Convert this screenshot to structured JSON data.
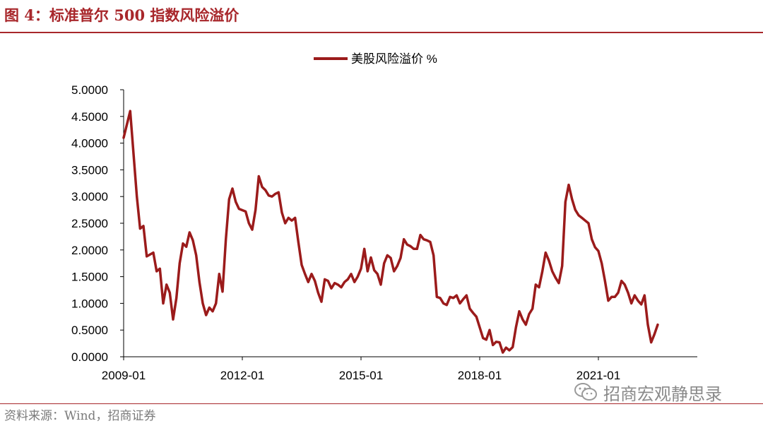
{
  "figure": {
    "title": "图 4：标准普尔 500 指数风险溢价",
    "source": "资料来源：Wind，招商证券",
    "watermark": "招商宏观静思录",
    "watermark_icon": "wechat-icon"
  },
  "colors": {
    "accent": "#a8272b",
    "series": "#9b1b1b",
    "axis": "#000000",
    "source_text": "#7a7a7a"
  },
  "chart_data": {
    "type": "line",
    "title": "",
    "xlabel": "",
    "ylabel": "",
    "xlim": [
      "2009-01",
      "2023-07"
    ],
    "ylim": [
      0,
      5
    ],
    "grid": false,
    "legend_position": "top-center",
    "x_ticks": [
      "2009-01",
      "2012-01",
      "2015-01",
      "2018-01",
      "2021-01"
    ],
    "y_ticks": [
      "0.0000",
      "0.5000",
      "1.0000",
      "1.5000",
      "2.0000",
      "2.5000",
      "3.0000",
      "3.5000",
      "4.0000",
      "4.5000",
      "5.0000"
    ],
    "series": [
      {
        "name": "美股风险溢价 %",
        "color": "#9b1b1b",
        "points": [
          [
            "2009-01",
            4.1
          ],
          [
            "2009-03",
            4.6
          ],
          [
            "2009-05",
            3.0
          ],
          [
            "2009-06",
            2.4
          ],
          [
            "2009-07",
            2.45
          ],
          [
            "2009-08",
            1.88
          ],
          [
            "2009-10",
            1.95
          ],
          [
            "2009-11",
            1.6
          ],
          [
            "2009-12",
            1.65
          ],
          [
            "2010-01",
            1.0
          ],
          [
            "2010-02",
            1.35
          ],
          [
            "2010-03",
            1.2
          ],
          [
            "2010-04",
            0.7
          ],
          [
            "2010-05",
            1.1
          ],
          [
            "2010-06",
            1.75
          ],
          [
            "2010-07",
            2.12
          ],
          [
            "2010-08",
            2.06
          ],
          [
            "2010-09",
            2.33
          ],
          [
            "2010-10",
            2.18
          ],
          [
            "2010-11",
            1.9
          ],
          [
            "2010-12",
            1.4
          ],
          [
            "2011-01",
            1.0
          ],
          [
            "2011-02",
            0.78
          ],
          [
            "2011-03",
            0.92
          ],
          [
            "2011-04",
            0.85
          ],
          [
            "2011-05",
            1.0
          ],
          [
            "2011-06",
            1.55
          ],
          [
            "2011-07",
            1.22
          ],
          [
            "2011-08",
            2.2
          ],
          [
            "2011-09",
            2.95
          ],
          [
            "2011-10",
            3.15
          ],
          [
            "2011-11",
            2.9
          ],
          [
            "2011-12",
            2.77
          ],
          [
            "2012-02",
            2.72
          ],
          [
            "2012-03",
            2.5
          ],
          [
            "2012-04",
            2.38
          ],
          [
            "2012-05",
            2.75
          ],
          [
            "2012-06",
            3.38
          ],
          [
            "2012-07",
            3.18
          ],
          [
            "2012-08",
            3.12
          ],
          [
            "2012-09",
            3.02
          ],
          [
            "2012-10",
            3.0
          ],
          [
            "2012-11",
            3.05
          ],
          [
            "2012-12",
            3.08
          ],
          [
            "2013-01",
            2.7
          ],
          [
            "2013-02",
            2.5
          ],
          [
            "2013-03",
            2.6
          ],
          [
            "2013-04",
            2.55
          ],
          [
            "2013-05",
            2.6
          ],
          [
            "2013-06",
            2.15
          ],
          [
            "2013-07",
            1.72
          ],
          [
            "2013-08",
            1.55
          ],
          [
            "2013-09",
            1.4
          ],
          [
            "2013-10",
            1.55
          ],
          [
            "2013-11",
            1.42
          ],
          [
            "2013-12",
            1.2
          ],
          [
            "2014-01",
            1.03
          ],
          [
            "2014-02",
            1.45
          ],
          [
            "2014-03",
            1.42
          ],
          [
            "2014-04",
            1.28
          ],
          [
            "2014-05",
            1.38
          ],
          [
            "2014-06",
            1.35
          ],
          [
            "2014-07",
            1.3
          ],
          [
            "2014-08",
            1.4
          ],
          [
            "2014-09",
            1.45
          ],
          [
            "2014-10",
            1.55
          ],
          [
            "2014-11",
            1.4
          ],
          [
            "2014-12",
            1.5
          ],
          [
            "2015-01",
            1.65
          ],
          [
            "2015-02",
            2.02
          ],
          [
            "2015-03",
            1.6
          ],
          [
            "2015-04",
            1.86
          ],
          [
            "2015-05",
            1.62
          ],
          [
            "2015-06",
            1.55
          ],
          [
            "2015-07",
            1.35
          ],
          [
            "2015-08",
            1.75
          ],
          [
            "2015-09",
            1.9
          ],
          [
            "2015-10",
            1.85
          ],
          [
            "2015-11",
            1.6
          ],
          [
            "2015-12",
            1.7
          ],
          [
            "2016-01",
            1.85
          ],
          [
            "2016-02",
            2.2
          ],
          [
            "2016-03",
            2.1
          ],
          [
            "2016-04",
            2.07
          ],
          [
            "2016-05",
            2.02
          ],
          [
            "2016-06",
            2.02
          ],
          [
            "2016-07",
            2.28
          ],
          [
            "2016-08",
            2.2
          ],
          [
            "2016-09",
            2.18
          ],
          [
            "2016-10",
            2.15
          ],
          [
            "2016-11",
            1.9
          ],
          [
            "2016-12",
            1.12
          ],
          [
            "2017-01",
            1.1
          ],
          [
            "2017-02",
            1.0
          ],
          [
            "2017-03",
            0.97
          ],
          [
            "2017-04",
            1.12
          ],
          [
            "2017-05",
            1.1
          ],
          [
            "2017-06",
            1.15
          ],
          [
            "2017-07",
            1.0
          ],
          [
            "2017-08",
            1.08
          ],
          [
            "2017-09",
            1.15
          ],
          [
            "2017-10",
            0.9
          ],
          [
            "2017-11",
            0.82
          ],
          [
            "2017-12",
            0.75
          ],
          [
            "2018-01",
            0.55
          ],
          [
            "2018-02",
            0.35
          ],
          [
            "2018-03",
            0.32
          ],
          [
            "2018-04",
            0.5
          ],
          [
            "2018-05",
            0.22
          ],
          [
            "2018-06",
            0.28
          ],
          [
            "2018-07",
            0.27
          ],
          [
            "2018-08",
            0.08
          ],
          [
            "2018-09",
            0.17
          ],
          [
            "2018-10",
            0.12
          ],
          [
            "2018-11",
            0.18
          ],
          [
            "2018-12",
            0.55
          ],
          [
            "2019-01",
            0.85
          ],
          [
            "2019-02",
            0.7
          ],
          [
            "2019-03",
            0.6
          ],
          [
            "2019-04",
            0.8
          ],
          [
            "2019-05",
            0.9
          ],
          [
            "2019-06",
            1.35
          ],
          [
            "2019-07",
            1.3
          ],
          [
            "2019-08",
            1.6
          ],
          [
            "2019-09",
            1.95
          ],
          [
            "2019-10",
            1.8
          ],
          [
            "2019-11",
            1.6
          ],
          [
            "2019-12",
            1.48
          ],
          [
            "2020-01",
            1.38
          ],
          [
            "2020-02",
            1.7
          ],
          [
            "2020-03",
            2.9
          ],
          [
            "2020-04",
            3.22
          ],
          [
            "2020-05",
            2.95
          ],
          [
            "2020-06",
            2.75
          ],
          [
            "2020-07",
            2.65
          ],
          [
            "2020-08",
            2.6
          ],
          [
            "2020-09",
            2.55
          ],
          [
            "2020-10",
            2.5
          ],
          [
            "2020-11",
            2.2
          ],
          [
            "2020-12",
            2.05
          ],
          [
            "2021-01",
            1.98
          ],
          [
            "2021-02",
            1.75
          ],
          [
            "2021-03",
            1.42
          ],
          [
            "2021-04",
            1.05
          ],
          [
            "2021-05",
            1.12
          ],
          [
            "2021-06",
            1.12
          ],
          [
            "2021-07",
            1.2
          ],
          [
            "2021-08",
            1.42
          ],
          [
            "2021-09",
            1.35
          ],
          [
            "2021-10",
            1.2
          ],
          [
            "2021-11",
            1.0
          ],
          [
            "2021-12",
            1.15
          ],
          [
            "2022-01",
            1.05
          ],
          [
            "2022-02",
            0.98
          ],
          [
            "2022-03",
            1.15
          ],
          [
            "2022-04",
            0.6
          ],
          [
            "2022-05",
            0.27
          ],
          [
            "2022-06",
            0.42
          ],
          [
            "2022-07",
            0.6
          ]
        ]
      }
    ]
  }
}
